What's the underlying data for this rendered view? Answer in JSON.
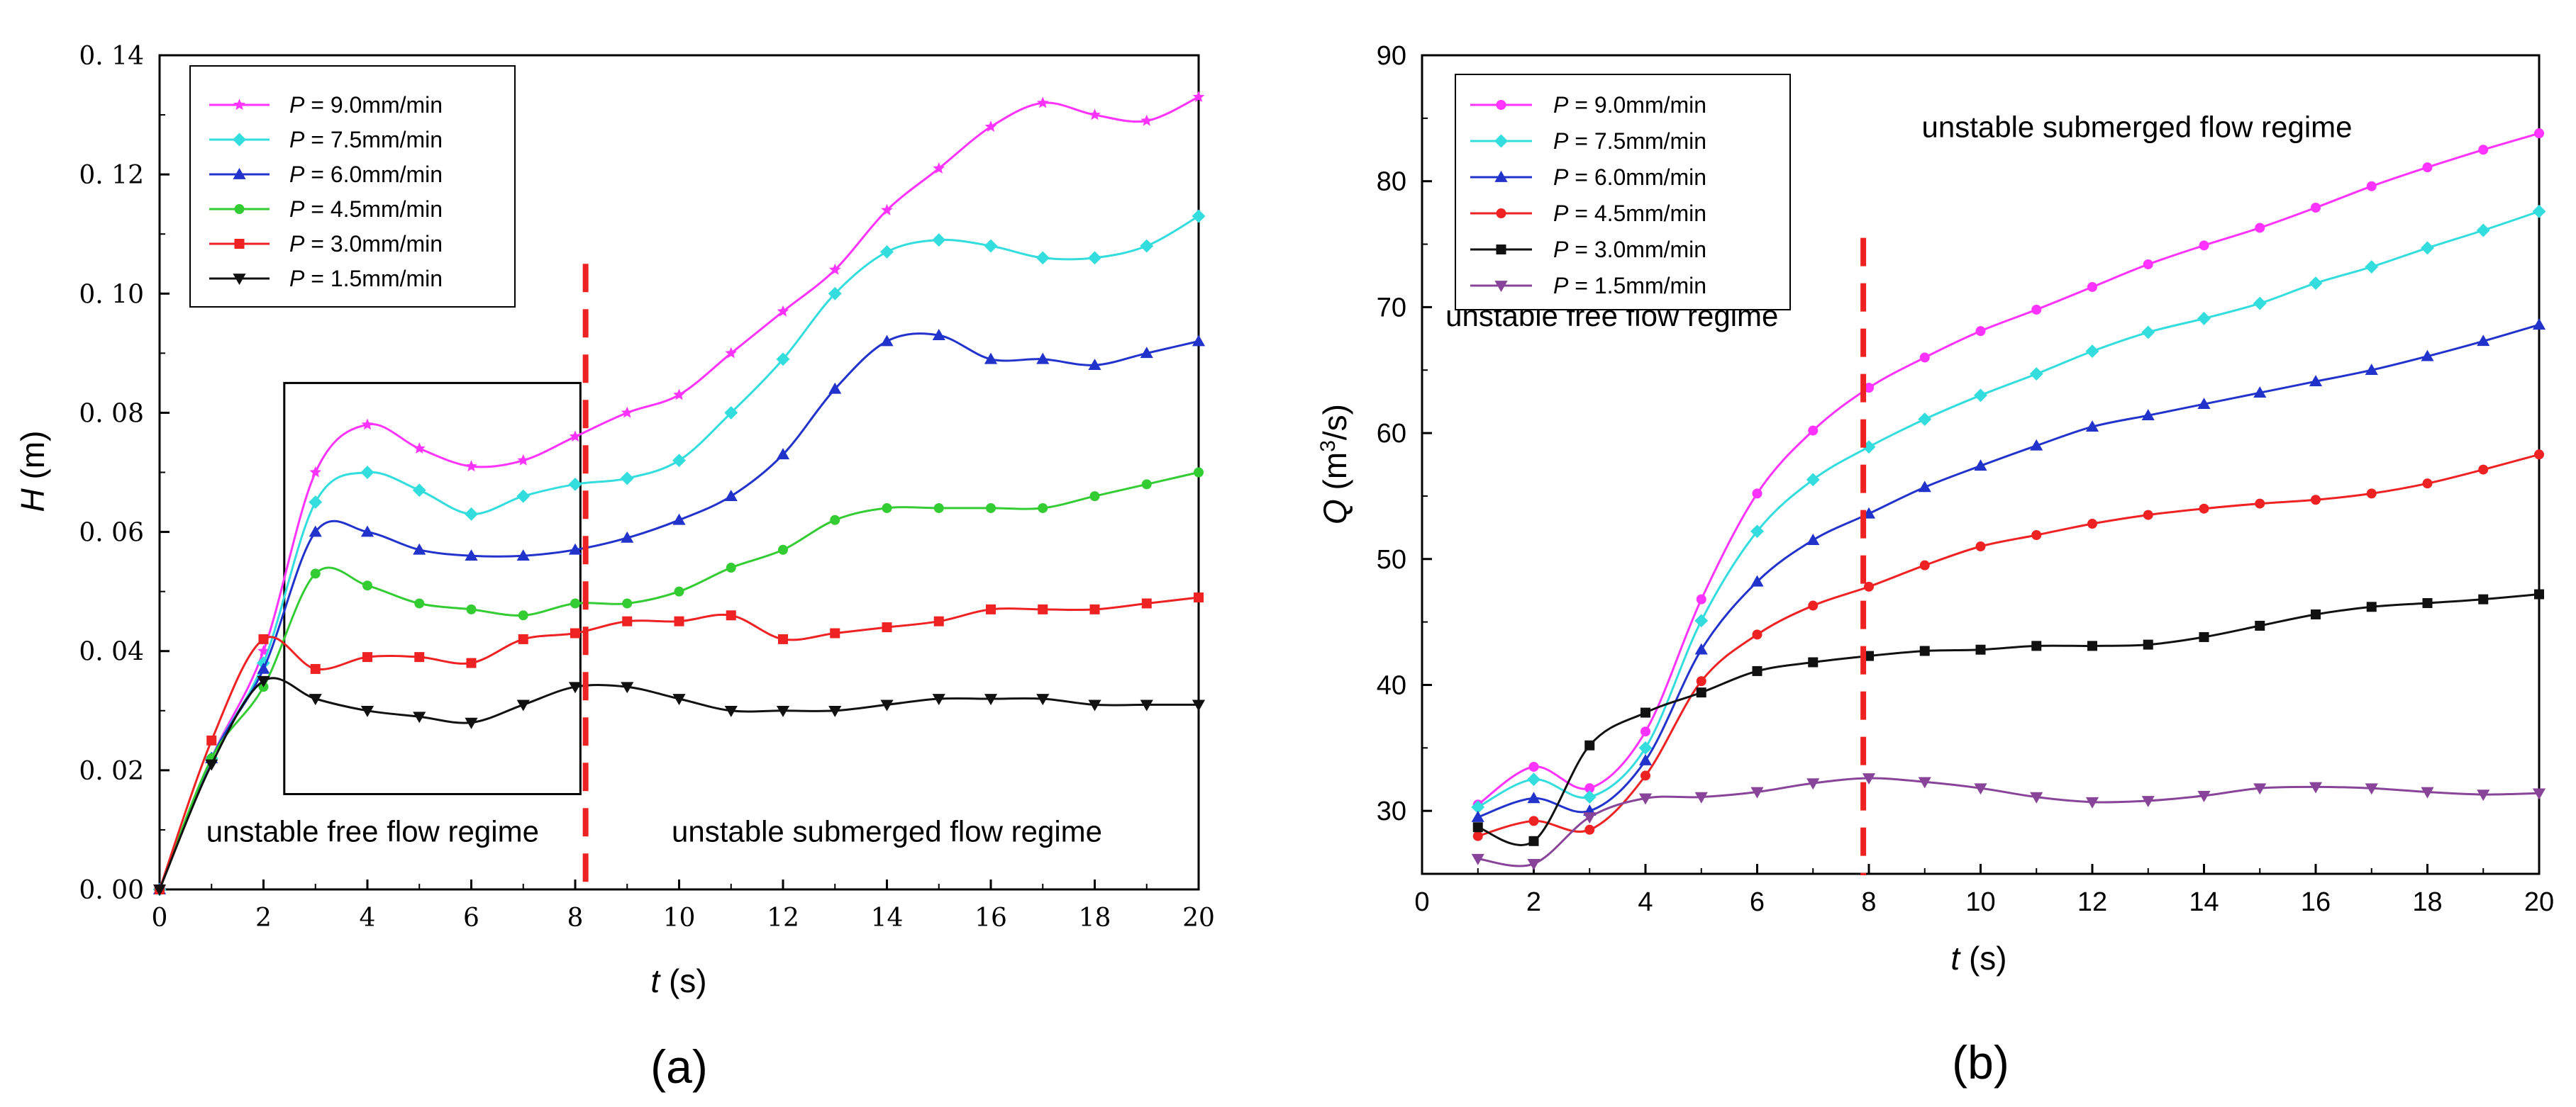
{
  "chart_data": [
    {
      "type": "line",
      "panel_label": "(a)",
      "title": "",
      "xlabel": "t (s)",
      "xlabel_var": "t",
      "xlabel_unit": " (s)",
      "ylabel": "H (m)",
      "ylabel_var": "H",
      "ylabel_unit": " (m)",
      "xlim": [
        0,
        20
      ],
      "ylim": [
        0,
        0.14
      ],
      "xticks": [
        0,
        2,
        4,
        6,
        8,
        10,
        12,
        14,
        16,
        18,
        20
      ],
      "xtick_labels": [
        "0",
        "2",
        "4",
        "6",
        "8",
        "10",
        "12",
        "14",
        "16",
        "18",
        "20"
      ],
      "yticks": [
        0,
        0.02,
        0.04,
        0.06,
        0.08,
        0.1,
        0.12,
        0.14
      ],
      "ytick_labels": [
        "0. 00",
        "0. 02",
        "0. 04",
        "0. 06",
        "0. 08",
        "0. 10",
        "0. 12",
        "0. 14"
      ],
      "grid": false,
      "legend_position": "top-left",
      "divider_x": 8.2,
      "annotations": [
        {
          "text": "unstable free flow regime",
          "x": 4.1,
          "y": 0.008
        },
        {
          "text": "unstable submerged flow regime",
          "x": 14.0,
          "y": 0.008
        }
      ],
      "highlight_box": {
        "x0": 2.4,
        "x1": 8.1,
        "y0": 0.016,
        "y1": 0.085
      },
      "series": [
        {
          "name": "P = 9.0mm/min",
          "var": "P",
          "rest": " = 9.0mm/min",
          "color": "#ff33ff",
          "marker": "star",
          "x": [
            0,
            1,
            2,
            3,
            4,
            5,
            6,
            7,
            8,
            9,
            10,
            11,
            12,
            13,
            14,
            15,
            16,
            17,
            18,
            19,
            20
          ],
          "values": [
            0,
            0.022,
            0.04,
            0.07,
            0.078,
            0.074,
            0.071,
            0.072,
            0.076,
            0.08,
            0.083,
            0.09,
            0.097,
            0.104,
            0.114,
            0.121,
            0.128,
            0.132,
            0.13,
            0.129,
            0.133
          ]
        },
        {
          "name": "P = 7.5mm/min",
          "var": "P",
          "rest": " = 7.5mm/min",
          "color": "#33dddd",
          "marker": "diamond",
          "x": [
            0,
            1,
            2,
            3,
            4,
            5,
            6,
            7,
            8,
            9,
            10,
            11,
            12,
            13,
            14,
            15,
            16,
            17,
            18,
            19,
            20
          ],
          "values": [
            0,
            0.022,
            0.038,
            0.065,
            0.07,
            0.067,
            0.063,
            0.066,
            0.068,
            0.069,
            0.072,
            0.08,
            0.089,
            0.1,
            0.107,
            0.109,
            0.108,
            0.106,
            0.106,
            0.108,
            0.113
          ]
        },
        {
          "name": "P = 6.0mm/min",
          "var": "P",
          "rest": " = 6.0mm/min",
          "color": "#2233cc",
          "marker": "triangle-up",
          "x": [
            0,
            1,
            2,
            3,
            4,
            5,
            6,
            7,
            8,
            9,
            10,
            11,
            12,
            13,
            14,
            15,
            16,
            17,
            18,
            19,
            20
          ],
          "values": [
            0,
            0.022,
            0.037,
            0.06,
            0.06,
            0.057,
            0.056,
            0.056,
            0.057,
            0.059,
            0.062,
            0.066,
            0.073,
            0.084,
            0.092,
            0.093,
            0.089,
            0.089,
            0.088,
            0.09,
            0.092
          ]
        },
        {
          "name": "P = 4.5mm/min",
          "var": "P",
          "rest": " = 4.5mm/min",
          "color": "#33cc33",
          "marker": "circle",
          "x": [
            0,
            1,
            2,
            3,
            4,
            5,
            6,
            7,
            8,
            9,
            10,
            11,
            12,
            13,
            14,
            15,
            16,
            17,
            18,
            19,
            20
          ],
          "values": [
            0,
            0.022,
            0.034,
            0.053,
            0.051,
            0.048,
            0.047,
            0.046,
            0.048,
            0.048,
            0.05,
            0.054,
            0.057,
            0.062,
            0.064,
            0.064,
            0.064,
            0.064,
            0.066,
            0.068,
            0.07
          ]
        },
        {
          "name": "P = 3.0mm/min",
          "var": "P",
          "rest": " = 3.0mm/min",
          "color": "#ee2222",
          "marker": "square",
          "x": [
            0,
            1,
            2,
            3,
            4,
            5,
            6,
            7,
            8,
            9,
            10,
            11,
            12,
            13,
            14,
            15,
            16,
            17,
            18,
            19,
            20
          ],
          "values": [
            0,
            0.025,
            0.042,
            0.037,
            0.039,
            0.039,
            0.038,
            0.042,
            0.043,
            0.045,
            0.045,
            0.046,
            0.042,
            0.043,
            0.044,
            0.045,
            0.047,
            0.047,
            0.047,
            0.048,
            0.049
          ]
        },
        {
          "name": "P = 1.5mm/min",
          "var": "P",
          "rest": " = 1.5mm/min",
          "color": "#111111",
          "marker": "triangle-down",
          "x": [
            0,
            1,
            2,
            3,
            4,
            5,
            6,
            7,
            8,
            9,
            10,
            11,
            12,
            13,
            14,
            15,
            16,
            17,
            18,
            19,
            20
          ],
          "values": [
            0,
            0.021,
            0.035,
            0.032,
            0.03,
            0.029,
            0.028,
            0.031,
            0.034,
            0.034,
            0.032,
            0.03,
            0.03,
            0.03,
            0.031,
            0.032,
            0.032,
            0.032,
            0.031,
            0.031,
            0.031
          ]
        }
      ]
    },
    {
      "type": "line",
      "panel_label": "(b)",
      "title": "",
      "xlabel": "t (s)",
      "xlabel_var": "t",
      "xlabel_unit": " (s)",
      "ylabel": "Q (m3/s)",
      "ylabel_var": "Q",
      "ylabel_unit_pre": " (m",
      "ylabel_unit_sup": "3",
      "ylabel_unit_post": "/s)",
      "xlim": [
        0,
        20
      ],
      "ylim": [
        25,
        90
      ],
      "xticks": [
        0,
        2,
        4,
        6,
        8,
        10,
        12,
        14,
        16,
        18,
        20
      ],
      "xtick_labels": [
        "0",
        "2",
        "4",
        "6",
        "8",
        "10",
        "12",
        "14",
        "16",
        "18",
        "20"
      ],
      "yticks": [
        30,
        40,
        50,
        60,
        70,
        80,
        90
      ],
      "ytick_labels": [
        "30",
        "40",
        "50",
        "60",
        "70",
        "80",
        "90"
      ],
      "grid": false,
      "legend_position": "top-left",
      "divider_x": 7.9,
      "annotations": [
        {
          "text": "unstable submerged flow regime",
          "x": 12.8,
          "y": 83.5
        },
        {
          "text": "unstable free flow regime",
          "x": 3.4,
          "y": 68.5
        }
      ],
      "series": [
        {
          "name": "P = 9.0mm/min",
          "var": "P",
          "rest": " = 9.0mm/min",
          "color": "#ff33ff",
          "marker": "circle",
          "x": [
            1,
            2,
            3,
            4,
            5,
            6,
            7,
            8,
            9,
            10,
            11,
            12,
            13,
            14,
            15,
            16,
            17,
            18,
            19,
            20
          ],
          "values": [
            30.5,
            33.5,
            31.8,
            36.3,
            46.8,
            55.2,
            60.2,
            63.6,
            66.0,
            68.1,
            69.8,
            71.6,
            73.4,
            74.9,
            76.3,
            77.9,
            79.6,
            81.1,
            82.5,
            83.8
          ]
        },
        {
          "name": "P = 7.5mm/min",
          "var": "P",
          "rest": " = 7.5mm/min",
          "color": "#33dddd",
          "marker": "diamond",
          "x": [
            1,
            2,
            3,
            4,
            5,
            6,
            7,
            8,
            9,
            10,
            11,
            12,
            13,
            14,
            15,
            16,
            17,
            18,
            19,
            20
          ],
          "values": [
            30.3,
            32.5,
            31.1,
            35.0,
            45.1,
            52.2,
            56.3,
            58.9,
            61.1,
            63.0,
            64.7,
            66.5,
            68.0,
            69.1,
            70.3,
            71.9,
            73.2,
            74.7,
            76.1,
            77.6
          ]
        },
        {
          "name": "P = 6.0mm/min",
          "var": "P",
          "rest": " = 6.0mm/min",
          "color": "#2233cc",
          "marker": "triangle-up",
          "x": [
            1,
            2,
            3,
            4,
            5,
            6,
            7,
            8,
            9,
            10,
            11,
            12,
            13,
            14,
            15,
            16,
            17,
            18,
            19,
            20
          ],
          "values": [
            29.5,
            31.0,
            30.0,
            34.0,
            42.8,
            48.2,
            51.5,
            53.6,
            55.7,
            57.4,
            59.0,
            60.5,
            61.4,
            62.3,
            63.2,
            64.1,
            65.0,
            66.1,
            67.3,
            68.6
          ]
        },
        {
          "name": "P = 4.5mm/min",
          "var": "P",
          "rest": " = 4.5mm/min",
          "color": "#ee2222",
          "marker": "circle",
          "x": [
            1,
            2,
            3,
            4,
            5,
            6,
            7,
            8,
            9,
            10,
            11,
            12,
            13,
            14,
            15,
            16,
            17,
            18,
            19,
            20
          ],
          "values": [
            28.0,
            29.2,
            28.5,
            32.8,
            40.3,
            44.0,
            46.3,
            47.8,
            49.5,
            51.0,
            51.9,
            52.8,
            53.5,
            54.0,
            54.4,
            54.7,
            55.2,
            56.0,
            57.1,
            58.3
          ]
        },
        {
          "name": "P = 3.0mm/min",
          "var": "P",
          "rest": " = 3.0mm/min",
          "color": "#111111",
          "marker": "square",
          "x": [
            1,
            2,
            3,
            4,
            5,
            6,
            7,
            8,
            9,
            10,
            11,
            12,
            13,
            14,
            15,
            16,
            17,
            18,
            19,
            20
          ],
          "values": [
            28.7,
            27.6,
            35.2,
            37.8,
            39.4,
            41.1,
            41.8,
            42.3,
            42.7,
            42.8,
            43.1,
            43.1,
            43.2,
            43.8,
            44.7,
            45.6,
            46.2,
            46.5,
            46.8,
            47.2
          ]
        },
        {
          "name": "P = 1.5mm/min",
          "var": "P",
          "rest": " = 1.5mm/min",
          "color": "#884499",
          "marker": "triangle-down",
          "x": [
            1,
            2,
            3,
            4,
            5,
            6,
            7,
            8,
            9,
            10,
            11,
            12,
            13,
            14,
            15,
            16,
            17,
            18,
            19,
            20
          ],
          "values": [
            26.2,
            25.8,
            29.5,
            31.0,
            31.1,
            31.5,
            32.2,
            32.6,
            32.3,
            31.8,
            31.1,
            30.7,
            30.8,
            31.2,
            31.8,
            31.9,
            31.8,
            31.5,
            31.3,
            31.4
          ]
        }
      ]
    }
  ]
}
